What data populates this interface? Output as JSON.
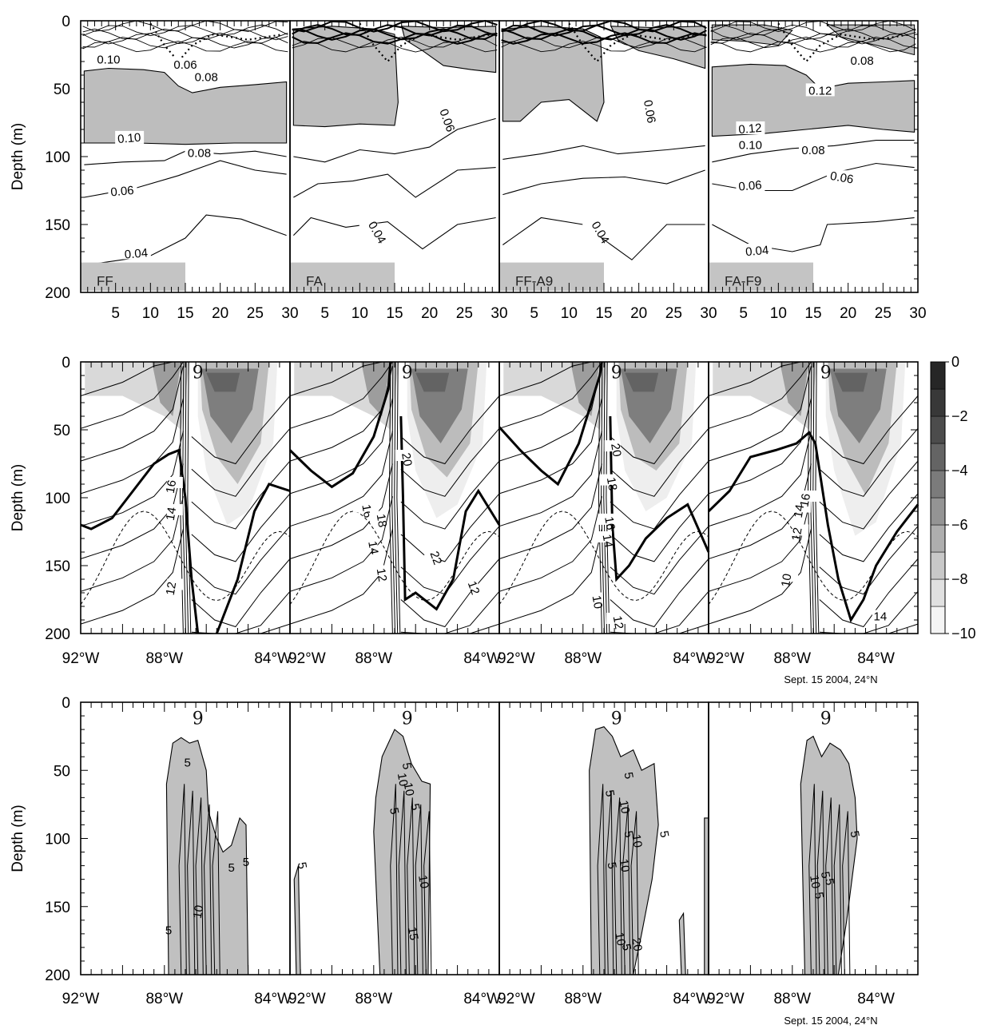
{
  "figure": {
    "rows": [
      {
        "id": "top",
        "ylabel": "Depth (m)",
        "yticks": [
          "0",
          "50",
          "100",
          "150",
          "200"
        ],
        "xticks": [
          "5",
          "10",
          "15",
          "20",
          "25",
          "30"
        ],
        "panels": [
          {
            "label": "FF",
            "contour_labels": [
              "0.10",
              "0.06",
              "0.08",
              "0.10",
              "0.08",
              "0.06",
              "0.04"
            ]
          },
          {
            "label": "FA",
            "contour_labels": [
              "0.06",
              "0.04"
            ]
          },
          {
            "label": "FF-A9",
            "contour_labels": [
              "0.06",
              "0.04"
            ]
          },
          {
            "label": "FA-F9",
            "contour_labels": [
              "0.08",
              "0.12",
              "0.12",
              "0.10",
              "0.08",
              "0.06",
              "0.06",
              "0.04"
            ]
          }
        ]
      },
      {
        "id": "middle",
        "ylabel": "Depth (m)",
        "yticks": [
          "0",
          "50",
          "100",
          "150",
          "200"
        ],
        "xticks": [
          "92°W",
          "88°W",
          "84°W"
        ],
        "annotation": "Sept. 15 2004, 24°N",
        "storm_symbol": "9",
        "panels": [
          {
            "contour_labels": [
              "16",
              "14",
              "12"
            ]
          },
          {
            "contour_labels": [
              "20",
              "16",
              "18",
              "14",
              "12",
              "22",
              "12"
            ]
          },
          {
            "contour_labels": [
              "20",
              "18",
              "16",
              "14",
              "10",
              "12"
            ]
          },
          {
            "contour_labels": [
              "14",
              "16",
              "12",
              "10",
              "14"
            ]
          }
        ],
        "colorbar": {
          "ticks": [
            "0",
            "−2",
            "−4",
            "−6",
            "−8",
            "−10"
          ]
        }
      },
      {
        "id": "bottom",
        "ylabel": "Depth (m)",
        "yticks": [
          "0",
          "50",
          "100",
          "150",
          "200"
        ],
        "xticks": [
          "92°W",
          "88°W",
          "84°W"
        ],
        "annotation": "Sept. 15 2004, 24°N",
        "storm_symbol": "9",
        "panels": [
          {
            "contour_labels": [
              "5",
              "5",
              "5",
              "10",
              "5"
            ]
          },
          {
            "contour_labels": [
              "5",
              "5",
              "10",
              "10",
              "5",
              "5",
              "10",
              "15"
            ]
          },
          {
            "contour_labels": [
              "5",
              "5",
              "10",
              "5",
              "10",
              "5",
              "10",
              "10",
              "5",
              "20",
              "5"
            ]
          },
          {
            "contour_labels": [
              "5",
              "5",
              "5",
              "10",
              "5"
            ]
          }
        ]
      }
    ]
  },
  "chart_data": [
    {
      "type": "heatmap",
      "row": "top",
      "panels": [
        "FF",
        "FA",
        "FF-A9",
        "FA-F9"
      ],
      "x_range": [
        0,
        30
      ],
      "y_range": [
        0,
        200
      ],
      "y_inverted": true,
      "ylabel": "Depth (m)",
      "contours": [
        {
          "panel": "FF",
          "levels": [
            0.04,
            0.06,
            0.08,
            0.1
          ]
        },
        {
          "panel": "FA",
          "levels": [
            0.04,
            0.06
          ]
        },
        {
          "panel": "FF-A9",
          "levels": [
            0.04,
            0.06
          ]
        },
        {
          "panel": "FA-F9",
          "levels": [
            0.04,
            0.06,
            0.08,
            0.1,
            0.12
          ]
        }
      ]
    },
    {
      "type": "heatmap",
      "row": "middle",
      "x_range": [
        -92,
        -82
      ],
      "y_range": [
        0,
        200
      ],
      "y_inverted": true,
      "ylabel": "Depth (m)",
      "colorbar_range": [
        -10,
        0
      ],
      "colorbar_ticks": [
        0,
        -2,
        -4,
        -6,
        -8,
        -10
      ]
    },
    {
      "type": "heatmap",
      "row": "bottom",
      "x_range": [
        -92,
        -82
      ],
      "y_range": [
        0,
        200
      ],
      "y_inverted": true,
      "ylabel": "Depth (m)",
      "contour_levels": [
        5,
        10,
        15,
        20
      ]
    }
  ]
}
